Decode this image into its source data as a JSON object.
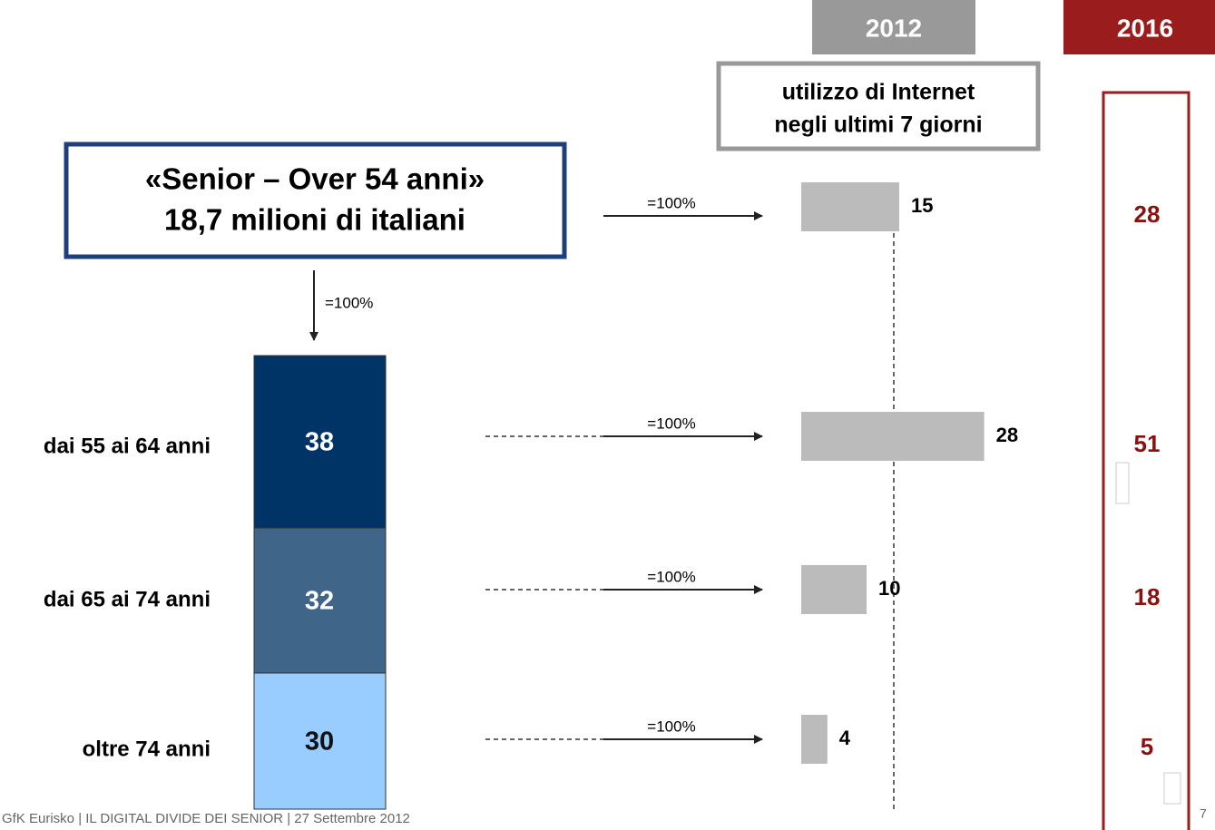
{
  "header": {
    "year_2012": "2012",
    "year_2016": "2016",
    "subtitle_lines": [
      "utilizzo di Internet",
      "negli ultimi 7 giorni"
    ]
  },
  "senior_box": {
    "lines": [
      "«Senior – Over 54 anni»",
      "18,7 milioni di italiani"
    ],
    "arrow_label": "=100%"
  },
  "total": {
    "arrow_label": "=100%",
    "value_2012": 15,
    "value_2016": 28
  },
  "rows": [
    {
      "label": "dai 55 ai 64 anni",
      "share": 38,
      "color": "#003366",
      "arrow_label": "=100%",
      "value_2012": 28,
      "value_2016": 51
    },
    {
      "label": "dai 65 ai 74 anni",
      "share": 32,
      "color": "#3f6689",
      "arrow_label": "=100%",
      "value_2012": 10,
      "value_2016": 18
    },
    {
      "label": "oltre 74 anni",
      "share": 30,
      "color": "#99ccff",
      "arrow_label": "=100%",
      "value_2012": 4,
      "value_2016": 5
    }
  ],
  "footer": "GfK Eurisko | IL DIGITAL DIVIDE DEI SENIOR | 27 Settembre 2012",
  "page_number": "7"
}
